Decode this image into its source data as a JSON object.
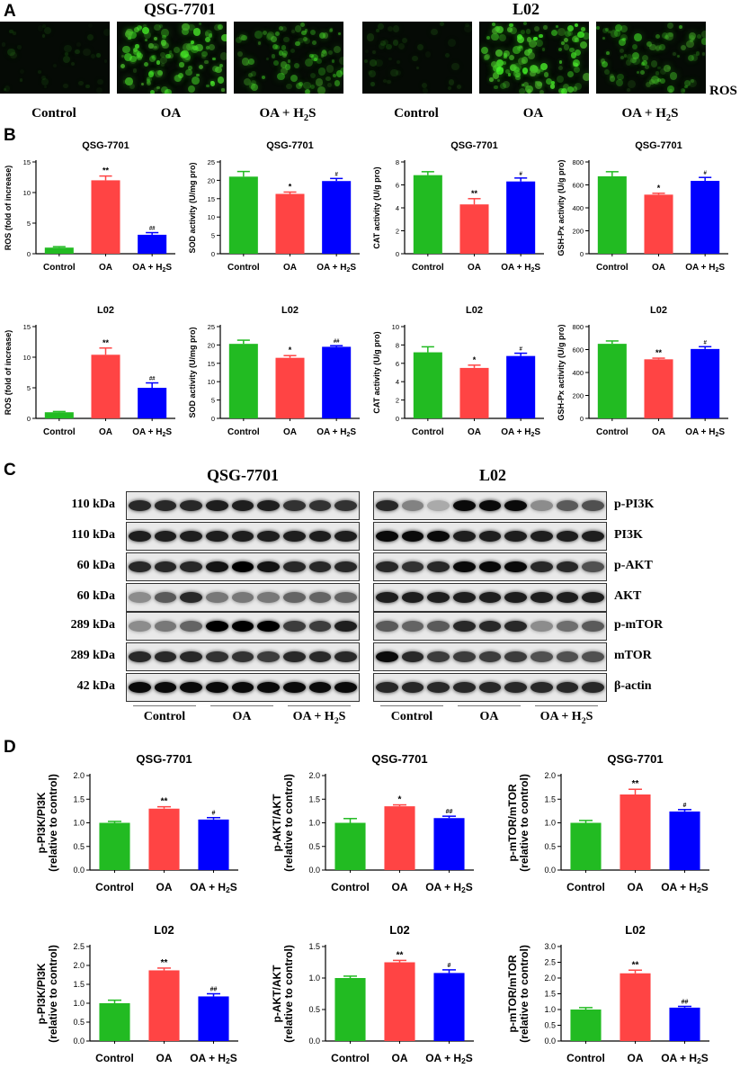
{
  "panel_labels": {
    "a": "A",
    "b": "B",
    "c": "C",
    "d": "D"
  },
  "panel_a": {
    "cell_lines": [
      "QSG-7701",
      "L02"
    ],
    "conditions": [
      "Control",
      "OA",
      "OA + H2S"
    ],
    "stain_label": "ROS",
    "intensity": [
      0.15,
      0.85,
      0.6,
      0.2,
      0.9,
      0.6
    ]
  },
  "panel_c": {
    "cell_lines": [
      "QSG-7701",
      "L02"
    ],
    "rows": [
      {
        "kda": "110 kDa",
        "protein": "p-PI3K"
      },
      {
        "kda": "110 kDa",
        "protein": "PI3K"
      },
      {
        "kda": "60 kDa",
        "protein": "p-AKT"
      },
      {
        "kda": "60 kDa",
        "protein": "AKT"
      },
      {
        "kda": "289 kDa",
        "protein": "p-mTOR"
      },
      {
        "kda": "289 kDa",
        "protein": "mTOR"
      },
      {
        "kda": "42 kDa",
        "protein": "β-actin"
      }
    ],
    "group_labels": [
      "Control",
      "OA",
      "OA + H2S"
    ],
    "band_intensity": {
      "QSG-7701": [
        [
          0.8,
          0.8,
          0.8,
          0.85,
          0.85,
          0.85,
          0.75,
          0.75,
          0.75
        ],
        [
          0.85,
          0.85,
          0.85,
          0.85,
          0.85,
          0.85,
          0.85,
          0.85,
          0.85
        ],
        [
          0.8,
          0.8,
          0.8,
          0.9,
          1.0,
          0.9,
          0.8,
          0.8,
          0.8
        ],
        [
          0.3,
          0.55,
          0.8,
          0.4,
          0.4,
          0.4,
          0.5,
          0.5,
          0.5
        ],
        [
          0.3,
          0.4,
          0.5,
          1.0,
          1.0,
          1.0,
          0.7,
          0.7,
          0.85
        ],
        [
          0.8,
          0.8,
          0.8,
          0.75,
          0.75,
          0.7,
          0.8,
          0.8,
          0.8
        ],
        [
          0.95,
          0.95,
          0.95,
          0.95,
          0.95,
          0.95,
          0.95,
          0.95,
          0.95
        ]
      ],
      "L02": [
        [
          0.8,
          0.35,
          0.15,
          0.95,
          0.95,
          0.95,
          0.3,
          0.55,
          0.6
        ],
        [
          0.95,
          0.95,
          0.95,
          0.85,
          0.85,
          0.85,
          0.85,
          0.85,
          0.85
        ],
        [
          0.8,
          0.75,
          0.8,
          0.95,
          0.95,
          0.95,
          0.8,
          0.8,
          0.6
        ],
        [
          0.85,
          0.85,
          0.85,
          0.85,
          0.85,
          0.85,
          0.85,
          0.85,
          0.85
        ],
        [
          0.55,
          0.5,
          0.55,
          0.8,
          0.8,
          0.8,
          0.3,
          0.45,
          0.55
        ],
        [
          0.95,
          0.8,
          0.7,
          0.7,
          0.7,
          0.7,
          0.6,
          0.6,
          0.6
        ],
        [
          0.8,
          0.8,
          0.8,
          0.8,
          0.8,
          0.8,
          0.8,
          0.8,
          0.8
        ]
      ]
    }
  },
  "bar_colors": [
    "#22bb22",
    "#ff4444",
    "#0000ff"
  ],
  "chart_data": [
    {
      "id": "b1",
      "type": "bar",
      "title": "QSG-7701",
      "ylabel": "ROS (fold of increase)",
      "categories": [
        "Control",
        "OA",
        "OA + H2S"
      ],
      "values": [
        1.0,
        12.0,
        3.1
      ],
      "errors": [
        0.15,
        0.7,
        0.35
      ],
      "annotations": [
        "",
        "**",
        "##"
      ],
      "ylim": [
        0,
        15
      ],
      "yticks": [
        0,
        5,
        10,
        15
      ]
    },
    {
      "id": "b2",
      "type": "bar",
      "title": "QSG-7701",
      "ylabel": "SOD activity (U/mg pro)",
      "categories": [
        "Control",
        "OA",
        "OA + H2S"
      ],
      "values": [
        21.0,
        16.3,
        19.8
      ],
      "errors": [
        1.4,
        0.5,
        0.7
      ],
      "annotations": [
        "",
        "*",
        "#"
      ],
      "ylim": [
        0,
        25
      ],
      "yticks": [
        0,
        5,
        10,
        15,
        20,
        25
      ]
    },
    {
      "id": "b3",
      "type": "bar",
      "title": "QSG-7701",
      "ylabel": "CAT activity (U/g pro)",
      "categories": [
        "Control",
        "OA",
        "OA + H2S"
      ],
      "values": [
        6.85,
        4.3,
        6.3
      ],
      "errors": [
        0.3,
        0.5,
        0.3
      ],
      "annotations": [
        "",
        "**",
        "#"
      ],
      "ylim": [
        0,
        8
      ],
      "yticks": [
        0,
        2,
        4,
        6,
        8
      ]
    },
    {
      "id": "b4",
      "type": "bar",
      "title": "QSG-7701",
      "ylabel": "GSH-Px activity (U/g pro)",
      "categories": [
        "Control",
        "OA",
        "OA + H2S"
      ],
      "values": [
        675,
        515,
        635
      ],
      "errors": [
        40,
        12,
        30
      ],
      "annotations": [
        "",
        "*",
        "#"
      ],
      "ylim": [
        0,
        800
      ],
      "yticks": [
        0,
        200,
        400,
        600,
        800
      ]
    },
    {
      "id": "b5",
      "type": "bar",
      "title": "L02",
      "ylabel": "ROS (fold of increase)",
      "categories": [
        "Control",
        "OA",
        "OA + H2S"
      ],
      "values": [
        1.0,
        10.4,
        5.0
      ],
      "errors": [
        0.12,
        1.1,
        0.8
      ],
      "annotations": [
        "",
        "**",
        "##"
      ],
      "ylim": [
        0,
        15
      ],
      "yticks": [
        0,
        5,
        10,
        15
      ]
    },
    {
      "id": "b6",
      "type": "bar",
      "title": "L02",
      "ylabel": "SOD activity (U/mg pro)",
      "categories": [
        "Control",
        "OA",
        "OA + H2S"
      ],
      "values": [
        20.3,
        16.5,
        19.5
      ],
      "errors": [
        1.0,
        0.6,
        0.3
      ],
      "annotations": [
        "",
        "*",
        "##"
      ],
      "ylim": [
        0,
        25
      ],
      "yticks": [
        0,
        5,
        10,
        15,
        20,
        25
      ]
    },
    {
      "id": "b7",
      "type": "bar",
      "title": "L02",
      "ylabel": "CAT activity (U/g pro)",
      "categories": [
        "Control",
        "OA",
        "OA + H2S"
      ],
      "values": [
        7.2,
        5.5,
        6.8
      ],
      "errors": [
        0.6,
        0.3,
        0.3
      ],
      "annotations": [
        "",
        "*",
        "#"
      ],
      "ylim": [
        0,
        10
      ],
      "yticks": [
        0,
        2,
        4,
        6,
        8,
        10
      ]
    },
    {
      "id": "b8",
      "type": "bar",
      "title": "L02",
      "ylabel": "GSH-Px activity (U/g pro)",
      "categories": [
        "Control",
        "OA",
        "OA + H2S"
      ],
      "values": [
        650,
        515,
        605
      ],
      "errors": [
        25,
        10,
        20
      ],
      "annotations": [
        "",
        "**",
        "#"
      ],
      "ylim": [
        0,
        800
      ],
      "yticks": [
        0,
        200,
        400,
        600,
        800
      ]
    },
    {
      "id": "d1",
      "type": "bar",
      "title": "QSG-7701",
      "ylabel": "p-PI3K/PI3K",
      "ylabel2": "(relative to control)",
      "categories": [
        "Control",
        "OA",
        "OA + H2S"
      ],
      "values": [
        1.0,
        1.3,
        1.07
      ],
      "errors": [
        0.03,
        0.04,
        0.04
      ],
      "annotations": [
        "",
        "**",
        "#"
      ],
      "ylim": [
        0,
        2.0
      ],
      "yticks": [
        0.0,
        0.5,
        1.0,
        1.5,
        2.0
      ]
    },
    {
      "id": "d2",
      "type": "bar",
      "title": "QSG-7701",
      "ylabel": "p-AKT/AKT",
      "ylabel2": "(relative to control)",
      "categories": [
        "Control",
        "OA",
        "OA + H2S"
      ],
      "values": [
        1.0,
        1.35,
        1.1
      ],
      "errors": [
        0.09,
        0.03,
        0.04
      ],
      "annotations": [
        "",
        "*",
        "##"
      ],
      "ylim": [
        0,
        2.0
      ],
      "yticks": [
        0.0,
        0.5,
        1.0,
        1.5,
        2.0
      ]
    },
    {
      "id": "d3",
      "type": "bar",
      "title": "QSG-7701",
      "ylabel": "p-mTOR/mTOR",
      "ylabel2": "(relative to control)",
      "categories": [
        "Control",
        "OA",
        "OA + H2S"
      ],
      "values": [
        1.0,
        1.6,
        1.24
      ],
      "errors": [
        0.05,
        0.11,
        0.04
      ],
      "annotations": [
        "",
        "**",
        "#"
      ],
      "ylim": [
        0,
        2.0
      ],
      "yticks": [
        0.0,
        0.5,
        1.0,
        1.5,
        2.0
      ]
    },
    {
      "id": "d4",
      "type": "bar",
      "title": "L02",
      "ylabel": "p-PI3K/PI3K",
      "ylabel2": "(relative to control)",
      "categories": [
        "Control",
        "OA",
        "OA + H2S"
      ],
      "values": [
        1.0,
        1.87,
        1.18
      ],
      "errors": [
        0.08,
        0.06,
        0.07
      ],
      "annotations": [
        "",
        "**",
        "##"
      ],
      "ylim": [
        0,
        2.5
      ],
      "yticks": [
        0.0,
        0.5,
        1.0,
        1.5,
        2.0,
        2.5
      ]
    },
    {
      "id": "d5",
      "type": "bar",
      "title": "L02",
      "ylabel": "p-AKT/AKT",
      "ylabel2": "(relative to control)",
      "categories": [
        "Control",
        "OA",
        "OA + H2S"
      ],
      "values": [
        1.0,
        1.25,
        1.08
      ],
      "errors": [
        0.03,
        0.03,
        0.05
      ],
      "annotations": [
        "",
        "**",
        "#"
      ],
      "ylim": [
        0,
        1.5
      ],
      "yticks": [
        0.0,
        0.5,
        1.0,
        1.5
      ]
    },
    {
      "id": "d6",
      "type": "bar",
      "title": "L02",
      "ylabel": "p-mTOR/mTOR",
      "ylabel2": "(relative to control)",
      "categories": [
        "Control",
        "OA",
        "OA + H2S"
      ],
      "values": [
        1.0,
        2.15,
        1.06
      ],
      "errors": [
        0.06,
        0.1,
        0.04
      ],
      "annotations": [
        "",
        "**",
        "##"
      ],
      "ylim": [
        0,
        3.0
      ],
      "yticks": [
        0.0,
        0.5,
        1.0,
        1.5,
        2.0,
        2.5,
        3.0
      ]
    }
  ]
}
